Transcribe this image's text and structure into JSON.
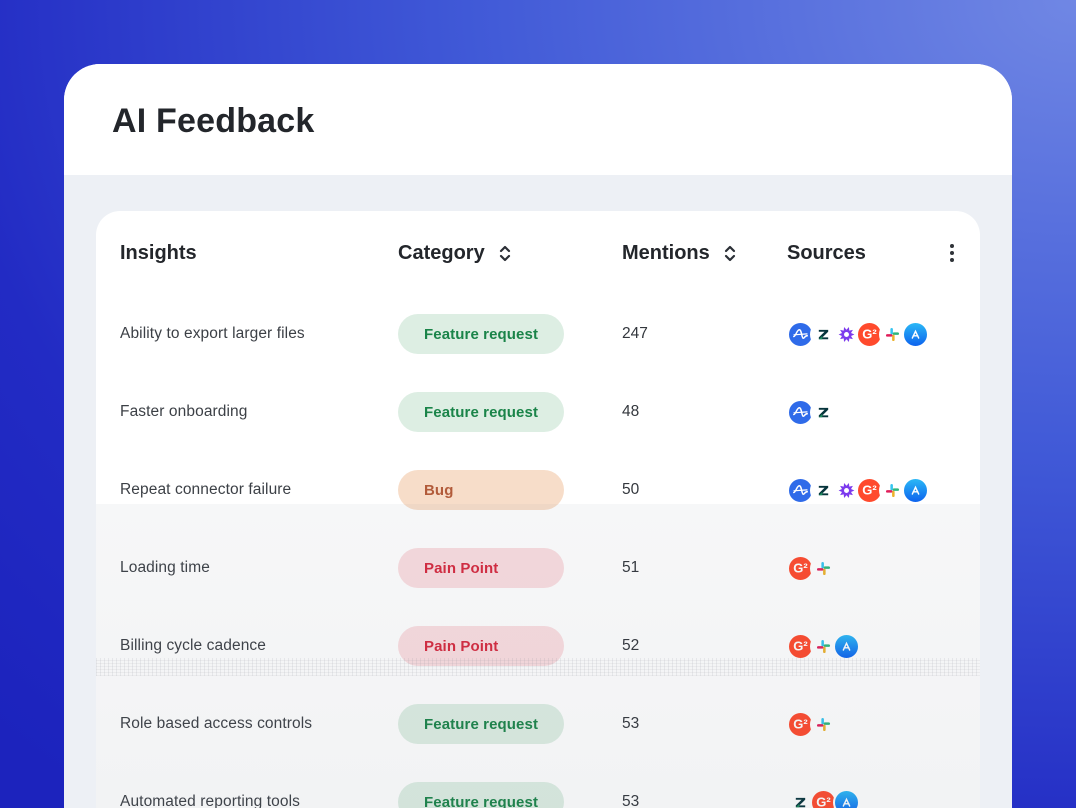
{
  "page": {
    "title": "AI Feedback"
  },
  "colors": {
    "background_gradient_dark": "#1c23bd",
    "background_gradient_light": "#7087e4",
    "card_section_bg": "#edf0f5",
    "badge_feature_bg": "#ddeee3",
    "badge_feature_text": "#1a8449",
    "badge_bug_bg": "#f7ddc9",
    "badge_bug_text": "#b25b3a",
    "badge_pain_bg": "#fadde0",
    "badge_pain_text": "#d6293e",
    "source_amplitude": "#2f6be9",
    "source_g2": "#ff4a2d",
    "source_appstore": "#0d63ee",
    "source_gong": "#7c3aed",
    "source_slack_blue": "#36c5f0",
    "source_slack_green": "#2eb67d",
    "source_slack_yellow": "#ecb22e",
    "source_slack_red": "#e01e5a",
    "source_zendesk": "#06343c"
  },
  "table": {
    "header": {
      "insights": "Insights",
      "category": "Category",
      "mentions": "Mentions",
      "sources": "Sources"
    },
    "sortable_columns": [
      "Category",
      "Mentions"
    ],
    "rows": [
      {
        "insight": "Ability to export larger files",
        "category": "Feature request",
        "category_type": "feature",
        "mentions": "247",
        "sources": [
          "amplitude",
          "zendesk",
          "gong",
          "g2",
          "slack",
          "appstore"
        ]
      },
      {
        "insight": "Faster onboarding",
        "category": "Feature request",
        "category_type": "feature",
        "mentions": "48",
        "sources": [
          "amplitude",
          "zendesk"
        ]
      },
      {
        "insight": "Repeat connector failure",
        "category": "Bug",
        "category_type": "bug",
        "mentions": "50",
        "sources": [
          "amplitude",
          "zendesk",
          "gong",
          "g2",
          "slack",
          "appstore"
        ]
      },
      {
        "insight": "Loading time",
        "category": "Pain Point",
        "category_type": "pain",
        "mentions": "51",
        "sources": [
          "g2",
          "slack"
        ]
      },
      {
        "insight": "Billing cycle cadence",
        "category": "Pain Point",
        "category_type": "pain",
        "mentions": "52",
        "sources": [
          "g2",
          "slack",
          "appstore"
        ]
      },
      {
        "insight": "Role based access controls",
        "category": "Feature request",
        "category_type": "feature",
        "mentions": "53",
        "sources": [
          "g2",
          "slack"
        ]
      },
      {
        "insight": "Automated reporting tools",
        "category": "Feature request",
        "category_type": "feature",
        "mentions": "53",
        "sources": [
          "zendesk",
          "g2",
          "appstore"
        ]
      }
    ]
  }
}
